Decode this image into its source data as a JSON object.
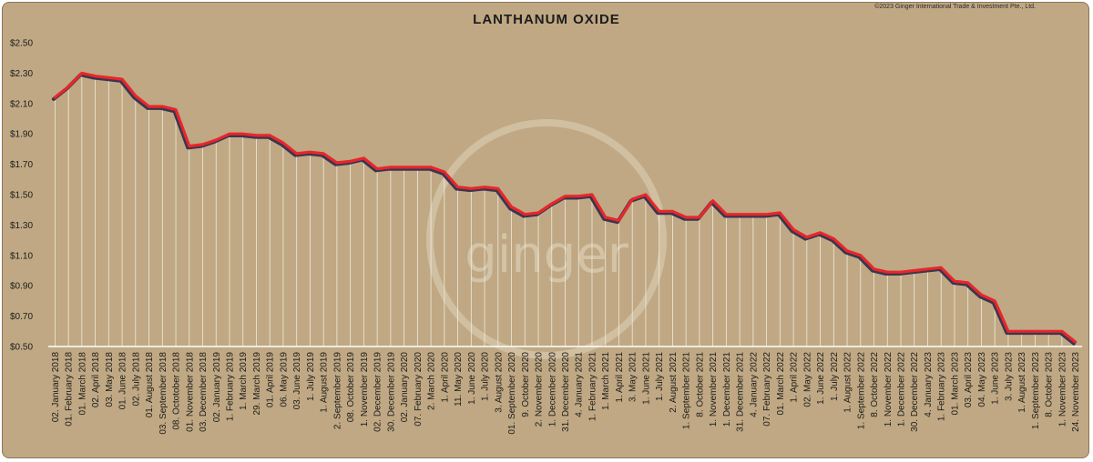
{
  "copyright": "©2023 Ginger International Trade & Investment Pte., Ltd.",
  "watermark": "ginger",
  "colors": {
    "background": "#bfa883",
    "line": "#e8262a",
    "shadow": "#3a3550",
    "drop": "#f2eadc"
  },
  "chart_data": {
    "type": "line",
    "title": "LANTHANUM OXIDE",
    "xlabel": "",
    "ylabel": "",
    "ylim": [
      0.5,
      2.5
    ],
    "yticks": [
      "$0.50",
      "$0.70",
      "$0.90",
      "$1.10",
      "$1.30",
      "$1.50",
      "$1.70",
      "$1.90",
      "$2.10",
      "$2.30",
      "$2.50"
    ],
    "grid": false,
    "categories": [
      "02. January 2018",
      "01. February 2018",
      "01. March 2018",
      "02. April 2018",
      "03. May 2018",
      "01. June 2018",
      "02. July 2018",
      "01. August 2018",
      "03. September 2018",
      "08. Octotober 2018",
      "01. November 2018",
      "03. December 2018",
      "02. January 2019",
      "1. February 2019",
      "1. March 2019",
      "29. March 2019",
      "01. April 2019",
      "06. May 2019",
      "03. June 2019",
      "1. July 2019",
      "1. August 2019",
      "2. September 2019",
      "08. October 2019",
      "1. November 2019",
      "02. December 2019",
      "30. December 2019",
      "02. January 2020",
      "07. February 2020",
      "2. March 2020",
      "1. April 2020",
      "11. May 2020",
      "1. June 2020",
      "1. July 2020",
      "3. August 2020",
      "01. September 2020",
      "9. October 2020",
      "2. November 2020",
      "1. December 2020",
      "31. December 2020",
      "4. January 2021",
      "1. February 2021",
      "1. March 2021",
      "1. April 2021",
      "3. May 2021",
      "1. June 2021",
      "1. July 2021",
      "2. August 2021",
      "1. September 2021",
      "8. October 2021",
      "1. November 2021",
      "1. December 2021",
      "31. December 2021",
      "4. January 2022",
      "07. February 2022",
      "01. March 2022",
      "1. April 2022",
      "02. May 2022",
      "1. June 2022",
      "1. July 2022",
      "1. August 2022",
      "1. September 2022",
      "8. October 2022",
      "1. November 2022",
      "1. December 2022",
      "30. December 2022",
      "4. January 2023",
      "1. February 2023",
      "01. March 2023",
      "03. April 2023",
      "04. May 2023",
      "1. June 2023",
      "3. July 2023",
      "1. August 2023",
      "1. September 2023",
      "8. October 2023",
      "1. November 2023",
      "24. November 2023"
    ],
    "series": [
      {
        "values": [
          2.14,
          2.21,
          2.3,
          2.28,
          2.27,
          2.26,
          2.15,
          2.08,
          2.08,
          2.06,
          1.82,
          1.83,
          1.86,
          1.9,
          1.9,
          1.89,
          1.89,
          1.84,
          1.77,
          1.78,
          1.77,
          1.71,
          1.72,
          1.74,
          1.67,
          1.68,
          1.68,
          1.68,
          1.68,
          1.65,
          1.55,
          1.54,
          1.55,
          1.54,
          1.42,
          1.37,
          1.38,
          1.44,
          1.49,
          1.49,
          1.5,
          1.35,
          1.33,
          1.47,
          1.5,
          1.39,
          1.39,
          1.35,
          1.35,
          1.46,
          1.37,
          1.37,
          1.37,
          1.37,
          1.38,
          1.27,
          1.22,
          1.25,
          1.21,
          1.13,
          1.1,
          1.01,
          0.99,
          0.99,
          1.0,
          1.01,
          1.02,
          0.93,
          0.92,
          0.84,
          0.8,
          0.6,
          0.6,
          0.6,
          0.6,
          0.6,
          0.53
        ]
      }
    ]
  }
}
